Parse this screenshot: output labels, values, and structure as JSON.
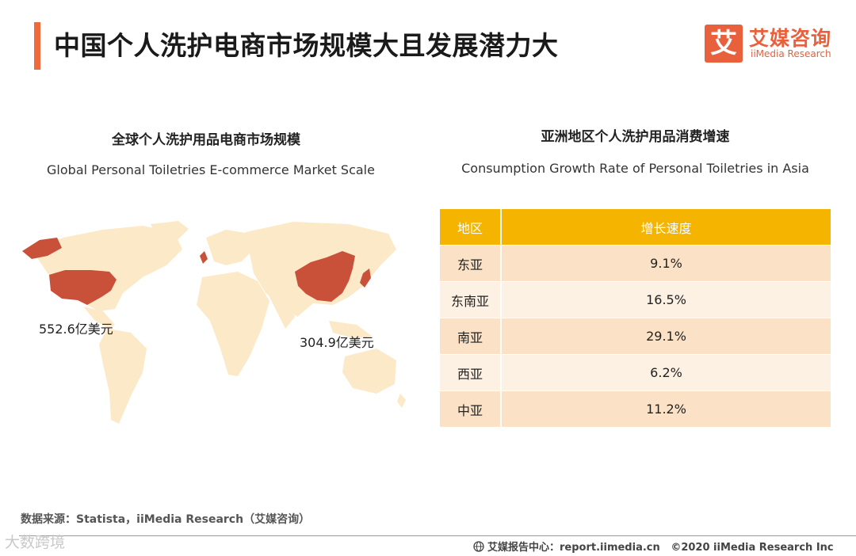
{
  "header": {
    "title": "中国个人洗护电商市场规模大且发展潜力大",
    "logo_mark": "艾",
    "logo_cn": "艾媒咨询",
    "logo_en": "iiMedia Research"
  },
  "left_panel": {
    "title_cn": "全球个人洗护用品电商市场规模",
    "title_en": "Global Personal Toiletries E-commerce Market Scale",
    "us_value": "552.6亿美元",
    "china_value": "304.9亿美元",
    "colors": {
      "land": "#fce9c8",
      "highlight": "#c9513a"
    }
  },
  "right_panel": {
    "title_cn": "亚洲地区个人洗护用品消费增速",
    "title_en": "Consumption Growth Rate of Personal Toiletries in Asia",
    "table": {
      "headers": [
        "地区",
        "增长速度"
      ],
      "rows": [
        {
          "region": "东亚",
          "rate": "9.1%"
        },
        {
          "region": "东南亚",
          "rate": "16.5%"
        },
        {
          "region": "南亚",
          "rate": "29.1%"
        },
        {
          "region": "西亚",
          "rate": "6.2%"
        },
        {
          "region": "中亚",
          "rate": "11.2%"
        }
      ]
    },
    "colors": {
      "header": "#f4b400",
      "row_odd": "#fbe2c6",
      "row_even": "#fdf1e3"
    }
  },
  "footer": {
    "source": "数据来源：Statista，iiMedia Research（艾媒咨询）",
    "watermark": "大数跨境",
    "report_center": "艾媒报告中心：report.iimedia.cn",
    "copyright": "©2020  iiMedia Research  Inc"
  },
  "accent_color": "#ee6a3c"
}
